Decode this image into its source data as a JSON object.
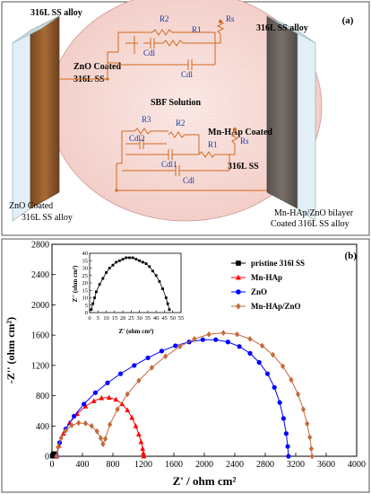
{
  "panel_a": {
    "label": "(a)",
    "left_top": "316L SS alloy",
    "right_top": "316L SS alloy",
    "left_coating": "ZnO Coated",
    "left_coating2": "316L SS",
    "solution": "SBF Solution",
    "right_coating": "Mn-HAp Coated",
    "right_coating2": "316L SS",
    "left_bottom1": "ZnO Coated",
    "left_bottom2": "316L SS alloy",
    "right_bottom1": "Mn-HAp/ZnO bilayer",
    "right_bottom2": "Coated 316L SS alloy",
    "c1": {
      "r2": "R2",
      "r1": "R1",
      "rs": "Rs",
      "cdl_a": "Cdl",
      "cdl_b": "Cdl"
    },
    "c2": {
      "r3": "R3",
      "r2": "R2",
      "cdl2": "Cdl2",
      "cdl1": "Cdl1",
      "r1": "R1",
      "rs": "Rs",
      "cdl": "Cdl"
    }
  },
  "chart_data": {
    "type": "scatter",
    "panel_label": "(b)",
    "xlabel": "Z' / ohm cm²",
    "ylabel": "-Z'' (ohm cm²)",
    "xlim": [
      0,
      4000
    ],
    "ylim": [
      0,
      2800
    ],
    "xticks": [
      0,
      400,
      800,
      1200,
      1600,
      2000,
      2400,
      2800,
      3200,
      3600,
      4000
    ],
    "yticks": [
      0,
      400,
      800,
      1200,
      1600,
      2000,
      2400,
      2800
    ],
    "legend_position": "top-right",
    "series": [
      {
        "name": "pristine 316l SS",
        "marker": "square",
        "color": "#000000",
        "x": [
          5,
          10,
          18,
          26,
          34,
          42,
          48,
          52
        ],
        "y": [
          2,
          14,
          27,
          33,
          33,
          25,
          12,
          2
        ]
      },
      {
        "name": "Mn-HAp",
        "marker": "triangle",
        "color": "#ff0000",
        "x": [
          60,
          90,
          150,
          230,
          330,
          440,
          550,
          650,
          750,
          840,
          920,
          990,
          1050,
          1100,
          1140,
          1170,
          1190,
          1200,
          1205
        ],
        "y": [
          0,
          140,
          300,
          440,
          560,
          660,
          730,
          770,
          775,
          750,
          690,
          610,
          510,
          400,
          290,
          190,
          100,
          40,
          0
        ]
      },
      {
        "name": "ZnO",
        "marker": "circle",
        "color": "#0000ff",
        "x": [
          60,
          100,
          180,
          290,
          420,
          570,
          730,
          900,
          1080,
          1260,
          1440,
          1620,
          1800,
          1980,
          2150,
          2310,
          2460,
          2600,
          2720,
          2830,
          2920,
          2990,
          3040,
          3075,
          3095,
          3105
        ],
        "y": [
          0,
          180,
          360,
          530,
          690,
          840,
          970,
          1090,
          1200,
          1300,
          1390,
          1460,
          1510,
          1540,
          1540,
          1510,
          1450,
          1360,
          1240,
          1090,
          910,
          710,
          500,
          300,
          130,
          0
        ]
      },
      {
        "name": "Mn-HAp/ZnO",
        "marker": "diamond",
        "color": "#c46a3a",
        "x": [
          60,
          80,
          120,
          180,
          260,
          350,
          440,
          520,
          590,
          640,
          670,
          700,
          760,
          860,
          990,
          1140,
          1310,
          1490,
          1680,
          1870,
          2060,
          2250,
          2430,
          2600,
          2760,
          2900,
          3030,
          3140,
          3230,
          3300,
          3350,
          3385,
          3405,
          3415
        ],
        "y": [
          0,
          120,
          240,
          340,
          410,
          440,
          435,
          400,
          330,
          240,
          160,
          230,
          420,
          620,
          820,
          1000,
          1170,
          1320,
          1450,
          1550,
          1610,
          1630,
          1610,
          1550,
          1460,
          1340,
          1190,
          1010,
          820,
          620,
          430,
          250,
          100,
          0
        ]
      }
    ],
    "inset": {
      "xlabel": "Z' (ohm cm²)",
      "ylabel": "Z'' (ohm cm²)",
      "xlim": [
        0,
        55
      ],
      "ylim": [
        0,
        40
      ],
      "xticks": [
        0,
        5,
        10,
        15,
        20,
        25,
        30,
        35,
        40,
        45,
        50,
        55
      ],
      "yticks": [
        0,
        5,
        10,
        15,
        20,
        25,
        30,
        35,
        40
      ],
      "x": [
        1,
        2,
        3,
        4,
        6,
        8,
        10,
        12,
        14,
        16,
        18,
        20,
        22,
        24,
        26,
        28,
        30,
        32,
        34,
        36,
        38,
        40,
        42,
        44,
        46,
        47,
        48
      ],
      "y": [
        2,
        6,
        10,
        14,
        19,
        23,
        27,
        30,
        32,
        34,
        35,
        36,
        37,
        37,
        37,
        36,
        35,
        34,
        33,
        31,
        28,
        25,
        21,
        16,
        10,
        6,
        2
      ]
    }
  }
}
